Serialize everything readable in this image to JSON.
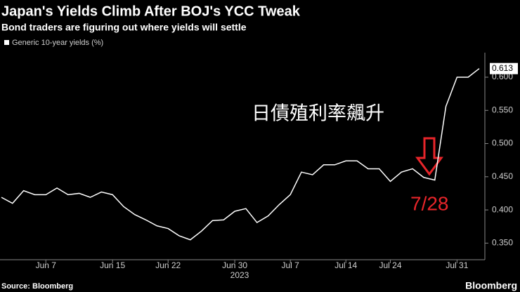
{
  "chart_data": {
    "type": "line",
    "title": "Japan's Yields Climb After BOJ's YCC Tweak",
    "subtitle": "Bond traders are figuring out where yields will settle",
    "categories": [
      null,
      null,
      null,
      null,
      "Jun 7",
      null,
      null,
      null,
      null,
      null,
      "Jun 15",
      null,
      null,
      null,
      null,
      "Jun 22",
      null,
      null,
      null,
      null,
      null,
      "Jun 30",
      null,
      null,
      null,
      null,
      "Jul 7",
      null,
      null,
      null,
      null,
      "Jul 14",
      null,
      null,
      null,
      "Jul 24",
      null,
      null,
      null,
      null,
      null,
      "Jul 31",
      null,
      null
    ],
    "x_axis_year": "2023",
    "series": [
      {
        "name": "Generic 10-year yields (%)",
        "color": "#ffffff",
        "values": [
          0.419,
          0.41,
          0.429,
          0.423,
          0.423,
          0.433,
          0.423,
          0.425,
          0.419,
          0.427,
          0.423,
          0.405,
          0.393,
          0.385,
          0.376,
          0.372,
          0.361,
          0.355,
          0.368,
          0.384,
          0.385,
          0.398,
          0.402,
          0.381,
          0.391,
          0.408,
          0.423,
          0.457,
          0.453,
          0.468,
          0.468,
          0.474,
          0.474,
          0.462,
          0.462,
          0.443,
          0.457,
          0.462,
          0.449,
          0.445,
          0.556,
          0.6,
          0.6,
          0.613
        ]
      }
    ],
    "ylim": [
      0.325,
      0.637
    ],
    "yticks": [
      {
        "value": 0.35,
        "label": "0.350"
      },
      {
        "value": 0.4,
        "label": "0.400"
      },
      {
        "value": 0.45,
        "label": "0.450"
      },
      {
        "value": 0.5,
        "label": "0.500"
      },
      {
        "value": 0.55,
        "label": "0.550"
      },
      {
        "value": 0.6,
        "label": "0.600"
      }
    ],
    "grid": false,
    "annotations": [
      "日債殖利率飆升",
      "7/28"
    ],
    "source": "Source: Bloomberg",
    "brand": "Bloomberg"
  }
}
